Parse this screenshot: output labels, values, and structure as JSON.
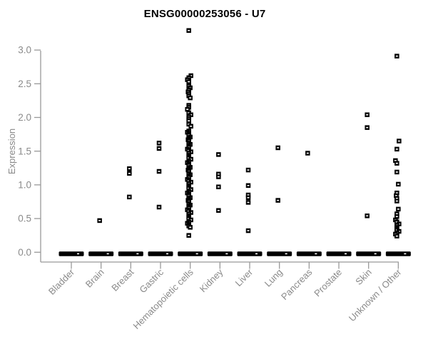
{
  "chart_data": {
    "type": "scatter",
    "title": "ENSG00000253056 - U7",
    "ylabel": "Expression",
    "xlabel": "",
    "ylim": [
      0,
      3.3
    ],
    "yticks": [
      "0.0",
      "0.5",
      "1.0",
      "1.5",
      "2.0",
      "2.5",
      "3.0"
    ],
    "grid": false,
    "legend": false,
    "marker": {
      "shape": "open-square",
      "color": "#000000"
    },
    "axis_color": "#999999",
    "label_color": "#8a8a8a",
    "zero_band": {
      "note": "every category shows a dense horizontal band of overlapping points at expression 0.0",
      "value": 0.0
    },
    "categories": [
      "Bladder",
      "Brain",
      "Breast",
      "Gastric",
      "Hematopoietic cells",
      "Kidney",
      "Liver",
      "Lung",
      "Pancreas",
      "Prostate",
      "Skin",
      "Unknown / Other"
    ],
    "series": [
      {
        "name": "Bladder",
        "values": []
      },
      {
        "name": "Brain",
        "values": [
          0.47
        ]
      },
      {
        "name": "Breast",
        "values": [
          1.24,
          1.17,
          0.82
        ]
      },
      {
        "name": "Gastric",
        "values": [
          1.62,
          1.54,
          1.2,
          0.67
        ]
      },
      {
        "name": "Hematopoietic cells",
        "values": [
          3.29,
          2.62,
          2.59,
          2.56,
          2.53,
          2.47,
          2.44,
          2.41,
          2.38,
          2.35,
          2.32,
          2.29,
          2.18,
          2.15,
          2.12,
          2.07,
          2.04,
          2.01,
          1.98,
          1.95,
          1.9,
          1.87,
          1.8,
          1.78,
          1.76,
          1.74,
          1.71,
          1.69,
          1.67,
          1.65,
          1.62,
          1.6,
          1.58,
          1.56,
          1.53,
          1.51,
          1.49,
          1.47,
          1.44,
          1.42,
          1.4,
          1.38,
          1.35,
          1.33,
          1.31,
          1.29,
          1.26,
          1.24,
          1.22,
          1.2,
          1.17,
          1.15,
          1.13,
          1.11,
          1.08,
          1.06,
          1.04,
          1.02,
          0.99,
          0.97,
          0.95,
          0.93,
          0.9,
          0.88,
          0.86,
          0.84,
          0.81,
          0.79,
          0.77,
          0.75,
          0.72,
          0.7,
          0.68,
          0.66,
          0.63,
          0.61,
          0.59,
          0.57,
          0.54,
          0.52,
          0.5,
          0.48,
          0.45,
          0.43,
          0.41,
          0.39,
          0.37,
          0.25
        ]
      },
      {
        "name": "Kidney",
        "values": [
          1.45,
          1.16,
          1.12,
          0.97,
          0.62
        ]
      },
      {
        "name": "Liver",
        "values": [
          1.22,
          0.99,
          0.85,
          0.81,
          0.74,
          0.32
        ]
      },
      {
        "name": "Lung",
        "values": [
          1.55,
          0.77
        ]
      },
      {
        "name": "Pancreas",
        "values": [
          1.47
        ]
      },
      {
        "name": "Prostate",
        "values": []
      },
      {
        "name": "Skin",
        "values": [
          2.04,
          1.85,
          0.54
        ]
      },
      {
        "name": "Unknown / Other",
        "values": [
          2.91,
          1.65,
          1.53,
          1.36,
          1.32,
          1.19,
          1.01,
          0.88,
          0.84,
          0.8,
          0.76,
          0.64,
          0.57,
          0.53,
          0.48,
          0.45,
          0.42,
          0.4,
          0.37,
          0.35,
          0.33,
          0.31,
          0.29,
          0.27,
          0.24
        ]
      }
    ]
  }
}
